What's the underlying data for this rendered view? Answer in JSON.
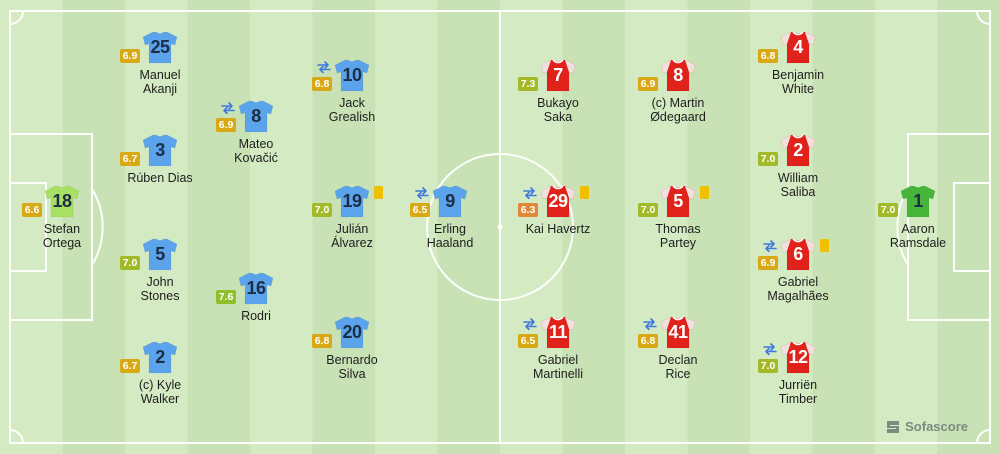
{
  "brand": {
    "name": "Sofascore"
  },
  "colors": {
    "home_shirt": "#5ba3ea",
    "home_gk_shirt": "#a7e063",
    "away_shirt": "#e0221b",
    "away_gk_shirt": "#46b53a",
    "card_yellow": "#f0c000",
    "sub_icon": "#3f78e0"
  },
  "players": [
    {
      "id": "ortega",
      "number": "18",
      "rating": "6.6",
      "name_lines": [
        "Stefan",
        "Ortega"
      ],
      "team": "home",
      "gk": true,
      "sub": false,
      "card": false
    },
    {
      "id": "akanji",
      "number": "25",
      "rating": "6.9",
      "name_lines": [
        "Manuel",
        "Akanji"
      ],
      "team": "home",
      "gk": false,
      "sub": false,
      "card": false
    },
    {
      "id": "dias",
      "number": "3",
      "rating": "6.7",
      "name_lines": [
        "Rúben Dias"
      ],
      "team": "home",
      "gk": false,
      "sub": false,
      "card": false
    },
    {
      "id": "stones",
      "number": "5",
      "rating": "7.0",
      "name_lines": [
        "John",
        "Stones"
      ],
      "team": "home",
      "gk": false,
      "sub": false,
      "card": false
    },
    {
      "id": "walker",
      "number": "2",
      "rating": "6.7",
      "name_lines": [
        "(c) Kyle",
        "Walker"
      ],
      "team": "home",
      "gk": false,
      "sub": false,
      "card": false
    },
    {
      "id": "kovacic",
      "number": "8",
      "rating": "6.9",
      "name_lines": [
        "Mateo",
        "Kovačić"
      ],
      "team": "home",
      "gk": false,
      "sub": true,
      "card": false
    },
    {
      "id": "rodri",
      "number": "16",
      "rating": "7.6",
      "name_lines": [
        "Rodri"
      ],
      "team": "home",
      "gk": false,
      "sub": false,
      "card": false
    },
    {
      "id": "grealish",
      "number": "10",
      "rating": "6.8",
      "name_lines": [
        "Jack",
        "Grealish"
      ],
      "team": "home",
      "gk": false,
      "sub": true,
      "card": false
    },
    {
      "id": "alvarez",
      "number": "19",
      "rating": "7.0",
      "name_lines": [
        "Julián",
        "Álvarez"
      ],
      "team": "home",
      "gk": false,
      "sub": false,
      "card": true
    },
    {
      "id": "silva",
      "number": "20",
      "rating": "6.8",
      "name_lines": [
        "Bernardo",
        "Silva"
      ],
      "team": "home",
      "gk": false,
      "sub": false,
      "card": false
    },
    {
      "id": "haaland",
      "number": "9",
      "rating": "6.5",
      "name_lines": [
        "Erling",
        "Haaland"
      ],
      "team": "home",
      "gk": false,
      "sub": true,
      "card": false
    },
    {
      "id": "havertz",
      "number": "29",
      "rating": "6.3",
      "name_lines": [
        "Kai Havertz"
      ],
      "team": "away",
      "gk": false,
      "sub": true,
      "card": true
    },
    {
      "id": "saka",
      "number": "7",
      "rating": "7.3",
      "name_lines": [
        "Bukayo",
        "Saka"
      ],
      "team": "away",
      "gk": false,
      "sub": false,
      "card": false
    },
    {
      "id": "martinelli",
      "number": "11",
      "rating": "6.5",
      "name_lines": [
        "Gabriel",
        "Martinelli"
      ],
      "team": "away",
      "gk": false,
      "sub": true,
      "card": false
    },
    {
      "id": "odegaard",
      "number": "8",
      "rating": "6.9",
      "name_lines": [
        "(c) Martin",
        "Ødegaard"
      ],
      "team": "away",
      "gk": false,
      "sub": false,
      "card": false
    },
    {
      "id": "partey",
      "number": "5",
      "rating": "7.0",
      "name_lines": [
        "Thomas",
        "Partey"
      ],
      "team": "away",
      "gk": false,
      "sub": false,
      "card": true
    },
    {
      "id": "rice",
      "number": "41",
      "rating": "6.8",
      "name_lines": [
        "Declan",
        "Rice"
      ],
      "team": "away",
      "gk": false,
      "sub": true,
      "card": false
    },
    {
      "id": "white",
      "number": "4",
      "rating": "6.8",
      "name_lines": [
        "Benjamin",
        "White"
      ],
      "team": "away",
      "gk": false,
      "sub": false,
      "card": false
    },
    {
      "id": "saliba",
      "number": "2",
      "rating": "7.0",
      "name_lines": [
        "William",
        "Saliba"
      ],
      "team": "away",
      "gk": false,
      "sub": false,
      "card": false
    },
    {
      "id": "gabriel",
      "number": "6",
      "rating": "6.9",
      "name_lines": [
        "Gabriel",
        "Magalhães"
      ],
      "team": "away",
      "gk": false,
      "sub": true,
      "card": true
    },
    {
      "id": "timber",
      "number": "12",
      "rating": "7.0",
      "name_lines": [
        "Jurriën",
        "Timber"
      ],
      "team": "away",
      "gk": false,
      "sub": true,
      "card": false
    },
    {
      "id": "ramsdale",
      "number": "1",
      "rating": "7.0",
      "name_lines": [
        "Aaron",
        "Ramsdale"
      ],
      "team": "away",
      "gk": true,
      "sub": false,
      "card": false
    }
  ]
}
